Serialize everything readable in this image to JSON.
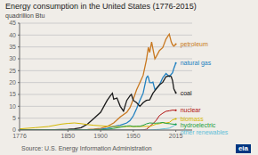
{
  "chart_data": {
    "type": "line",
    "title": "Energy consumption in the United States (1776-2015)",
    "ylabel": "quadrillion Btu",
    "background": "#f0ede8",
    "xlim": [
      1776,
      2040
    ],
    "xticks": [
      1776,
      1850,
      1900,
      1950,
      2015
    ],
    "ylim": [
      0,
      45
    ],
    "yticks": [
      0,
      5,
      10,
      15,
      20,
      25,
      30,
      35,
      40,
      45
    ],
    "grid": true,
    "annotations": [
      {
        "text": "Source: U.S. Energy Information Administration",
        "color": "#555555"
      },
      {
        "text": "eia",
        "color": "#ffffff",
        "background": "#003580"
      }
    ],
    "series": [
      {
        "name": "petroleum",
        "color": "#c87820",
        "x": [
          1776,
          1850,
          1860,
          1870,
          1880,
          1890,
          1900,
          1910,
          1920,
          1930,
          1940,
          1945,
          1950,
          1955,
          1960,
          1965,
          1970,
          1973,
          1975,
          1978,
          1980,
          1983,
          1985,
          1990,
          1995,
          2000,
          2005,
          2008,
          2010,
          2012,
          2015
        ],
        "values": [
          0,
          0.01,
          0.02,
          0.1,
          0.2,
          0.4,
          0.7,
          1.5,
          3.0,
          5.5,
          7.5,
          9.5,
          13.0,
          17.0,
          20.0,
          23.0,
          29.5,
          34.8,
          32.7,
          37.1,
          34.2,
          30.0,
          30.9,
          33.5,
          34.7,
          38.3,
          40.4,
          37.1,
          35.9,
          35.3,
          36.2
        ]
      },
      {
        "name": "natural gas",
        "color": "#2080c0",
        "x": [
          1776,
          1850,
          1880,
          1900,
          1910,
          1920,
          1930,
          1940,
          1945,
          1950,
          1955,
          1960,
          1965,
          1970,
          1972,
          1973,
          1975,
          1978,
          1980,
          1983,
          1985,
          1990,
          1995,
          2000,
          2005,
          2010,
          2012,
          2015
        ],
        "values": [
          0,
          0,
          0.02,
          0.3,
          0.7,
          1.5,
          2.0,
          3.0,
          4.0,
          6.0,
          9.0,
          12.5,
          15.5,
          22.0,
          22.7,
          22.2,
          20.0,
          19.9,
          20.2,
          17.0,
          17.5,
          19.0,
          22.0,
          23.8,
          22.5,
          24.1,
          26.0,
          28.2
        ]
      },
      {
        "name": "coal",
        "color": "#1a1a1a",
        "x": [
          1776,
          1820,
          1850,
          1860,
          1870,
          1880,
          1890,
          1900,
          1905,
          1910,
          1915,
          1918,
          1920,
          1925,
          1930,
          1935,
          1940,
          1945,
          1947,
          1950,
          1955,
          1960,
          1965,
          1970,
          1975,
          1980,
          1985,
          1990,
          1995,
          2000,
          2005,
          2008,
          2010,
          2012,
          2015
        ],
        "values": [
          0,
          0.05,
          0.3,
          0.5,
          1.0,
          2.5,
          5.0,
          7.5,
          10.0,
          12.5,
          14.5,
          15.5,
          13.0,
          13.5,
          10.0,
          8.0,
          12.5,
          14.5,
          15.0,
          12.5,
          11.5,
          10.0,
          11.5,
          12.5,
          12.7,
          15.5,
          17.3,
          19.0,
          20.1,
          22.5,
          22.8,
          22.5,
          20.8,
          17.3,
          15.7
        ]
      },
      {
        "name": "nuclear",
        "color": "#b01010",
        "x": [
          1776,
          1955,
          1960,
          1965,
          1970,
          1975,
          1980,
          1985,
          1990,
          1995,
          2000,
          2005,
          2010,
          2015
        ],
        "values": [
          0,
          0,
          0.01,
          0.1,
          0.3,
          1.5,
          2.7,
          4.1,
          6.1,
          7.1,
          7.9,
          8.1,
          8.4,
          8.3
        ]
      },
      {
        "name": "biomass",
        "color": "#d4b800",
        "x": [
          1776,
          1800,
          1820,
          1840,
          1850,
          1860,
          1870,
          1880,
          1890,
          1900,
          1910,
          1920,
          1930,
          1940,
          1950,
          1960,
          1970,
          1975,
          1980,
          1985,
          1990,
          1995,
          2000,
          2005,
          2010,
          2015
        ],
        "values": [
          0.5,
          1.0,
          1.5,
          2.5,
          2.8,
          3.0,
          2.7,
          2.3,
          2.0,
          1.8,
          1.6,
          1.5,
          1.4,
          1.5,
          1.5,
          1.5,
          1.6,
          1.5,
          2.0,
          2.5,
          2.7,
          3.1,
          3.0,
          3.2,
          4.3,
          4.7
        ]
      },
      {
        "name": "other renewables",
        "color": "#60c0d8",
        "x": [
          1776,
          1970,
          1975,
          1980,
          1985,
          1990,
          1995,
          2000,
          2005,
          2010,
          2015
        ],
        "values": [
          0,
          0,
          0.05,
          0.1,
          0.2,
          0.3,
          0.5,
          0.6,
          0.8,
          1.5,
          2.3
        ]
      },
      {
        "name": "hydroelectric",
        "color": "#20a040",
        "x": [
          1776,
          1850,
          1870,
          1880,
          1890,
          1900,
          1910,
          1920,
          1930,
          1935,
          1940,
          1945,
          1950,
          1955,
          1960,
          1965,
          1970,
          1975,
          1980,
          1985,
          1990,
          1995,
          2000,
          2005,
          2010,
          2015
        ],
        "values": [
          0,
          0,
          0.01,
          0.02,
          0.05,
          0.1,
          0.3,
          0.7,
          1.2,
          1.5,
          1.7,
          1.8,
          1.5,
          1.6,
          1.6,
          2.0,
          2.6,
          3.0,
          2.9,
          2.9,
          3.0,
          3.2,
          2.8,
          2.7,
          2.5,
          2.4
        ]
      }
    ]
  }
}
